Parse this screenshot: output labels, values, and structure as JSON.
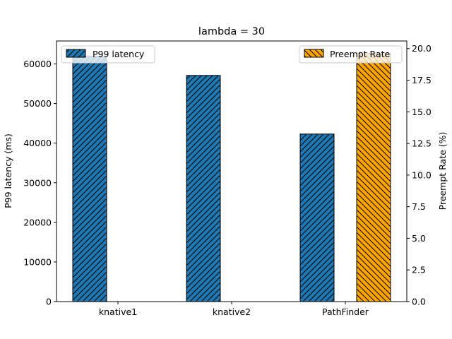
{
  "chart_data": {
    "type": "bar",
    "title": "lambda = 30",
    "categories": [
      "knative1",
      "knative2",
      "PathFinder"
    ],
    "series": [
      {
        "name": "P99 latency",
        "axis": "left",
        "values": [
          62000,
          57100,
          42300
        ],
        "color": "#1f77b4",
        "hatch": "diagonal-up"
      },
      {
        "name": "Preempt Rate",
        "axis": "right",
        "values": [
          0,
          0,
          19.6
        ],
        "color": "#ffa500",
        "hatch": "diagonal-down"
      }
    ],
    "ylabel": "P99 latency (ms)",
    "y2label": "Preempt Rate (%)",
    "ylim": [
      0,
      65800
    ],
    "y2lim": [
      0,
      20.6
    ],
    "yticks": [
      0,
      10000,
      20000,
      30000,
      40000,
      50000,
      60000
    ],
    "y2ticks": [
      "0.0",
      "2.5",
      "5.0",
      "7.5",
      "10.0",
      "12.5",
      "15.0",
      "17.5",
      "20.0"
    ],
    "legend_left": "upper left",
    "legend_right": "upper right",
    "grid": false
  }
}
